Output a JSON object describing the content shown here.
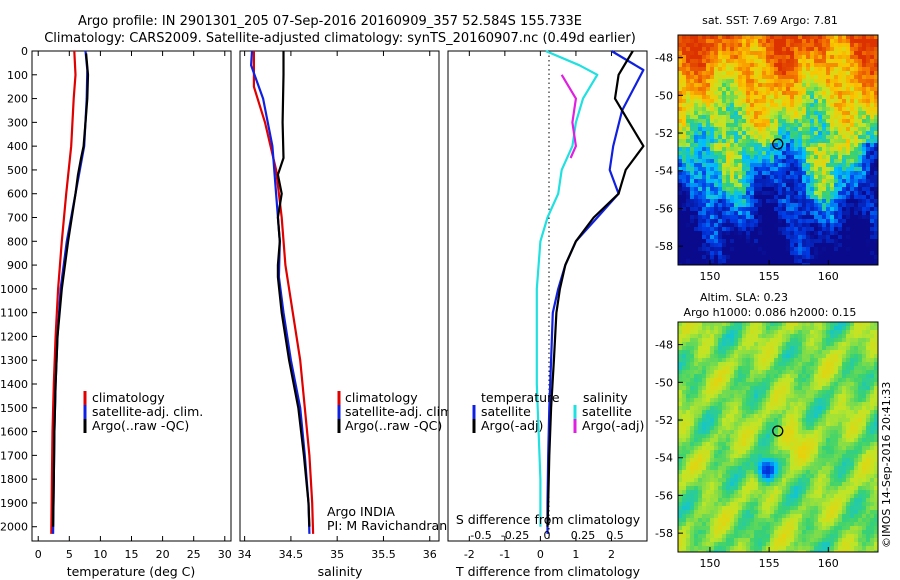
{
  "header": {
    "line1": "Argo profile: IN 2901301_205 07-Sep-2016 20160909_357 52.584S 155.733E",
    "line2": "Climatology: CARS2009. Satellite-adjusted climatology: synTS_20160907.nc (0.49d earlier)"
  },
  "colors": {
    "climatology": "#e00000",
    "satellite": "#1020e0",
    "argo": "#000000",
    "satellite_s": "#20e0e0",
    "argo_s": "#e020e0"
  },
  "depth_ticks": [
    "0",
    "100",
    "200",
    "300",
    "400",
    "500",
    "600",
    "700",
    "800",
    "900",
    "1000",
    "1100",
    "1200",
    "1300",
    "1400",
    "1500",
    "1600",
    "1700",
    "1800",
    "1900",
    "2000"
  ],
  "chart_data": [
    {
      "type": "line",
      "id": "temperature",
      "xlabel": "temperature (deg C)",
      "ylabel": "",
      "xlim": [
        -1,
        31
      ],
      "ylim": [
        2060,
        0
      ],
      "x_ticks": [
        "0",
        "5",
        "10",
        "15",
        "20",
        "25",
        "30"
      ],
      "legend": [
        "climatology",
        "satellite-adj. clim.",
        "Argo(..raw -QC)"
      ],
      "series": [
        {
          "name": "climatology",
          "color": "#e00000",
          "points": [
            [
              5.8,
              0
            ],
            [
              6.0,
              100
            ],
            [
              5.7,
              200
            ],
            [
              5.3,
              400
            ],
            [
              4.5,
              600
            ],
            [
              3.8,
              800
            ],
            [
              3.2,
              1000
            ],
            [
              2.8,
              1200
            ],
            [
              2.5,
              1400
            ],
            [
              2.3,
              1600
            ],
            [
              2.2,
              1800
            ],
            [
              2.1,
              2030
            ]
          ]
        },
        {
          "name": "satellite-adj. clim.",
          "color": "#1020e0",
          "points": [
            [
              7.6,
              0
            ],
            [
              7.9,
              80
            ],
            [
              7.8,
              200
            ],
            [
              7.4,
              400
            ],
            [
              6.0,
              600
            ],
            [
              4.6,
              800
            ],
            [
              3.6,
              1000
            ],
            [
              3.1,
              1200
            ],
            [
              2.8,
              1400
            ],
            [
              2.6,
              1600
            ],
            [
              2.5,
              1800
            ],
            [
              2.4,
              2030
            ]
          ]
        },
        {
          "name": "Argo(..raw -QC)",
          "color": "#000000",
          "points": [
            [
              7.7,
              10
            ],
            [
              8.0,
              100
            ],
            [
              7.9,
              200
            ],
            [
              7.6,
              300
            ],
            [
              7.3,
              400
            ],
            [
              6.9,
              450
            ],
            [
              6.4,
              520
            ],
            [
              6.0,
              600
            ],
            [
              4.8,
              800
            ],
            [
              3.8,
              1000
            ],
            [
              3.1,
              1200
            ],
            [
              2.8,
              1400
            ],
            [
              2.6,
              1600
            ],
            [
              2.5,
              1800
            ],
            [
              2.4,
              2000
            ]
          ]
        }
      ]
    },
    {
      "type": "line",
      "id": "salinity",
      "xlabel": "salinity",
      "ylabel": "",
      "xlim": [
        33.95,
        36.1
      ],
      "ylim": [
        2060,
        0
      ],
      "x_ticks": [
        "34",
        "34.5",
        "35",
        "35.5",
        "36"
      ],
      "legend": [
        "climatology",
        "satellite-adj. clim.",
        "Argo(..raw -QC)"
      ],
      "annotations": [
        "Argo INDIA",
        "PI: M Ravichandran"
      ],
      "series": [
        {
          "name": "climatology",
          "color": "#e00000",
          "points": [
            [
              34.1,
              0
            ],
            [
              34.1,
              150
            ],
            [
              34.22,
              300
            ],
            [
              34.34,
              500
            ],
            [
              34.4,
              700
            ],
            [
              34.44,
              900
            ],
            [
              34.52,
              1100
            ],
            [
              34.6,
              1300
            ],
            [
              34.65,
              1500
            ],
            [
              34.7,
              1700
            ],
            [
              34.73,
              1900
            ],
            [
              34.74,
              2030
            ]
          ]
        },
        {
          "name": "satellite-adj. clim.",
          "color": "#1020e0",
          "points": [
            [
              34.08,
              0
            ],
            [
              34.07,
              60
            ],
            [
              34.2,
              200
            ],
            [
              34.3,
              400
            ],
            [
              34.34,
              600
            ],
            [
              34.38,
              800
            ],
            [
              34.37,
              950
            ],
            [
              34.42,
              1100
            ],
            [
              34.5,
              1300
            ],
            [
              34.6,
              1500
            ],
            [
              34.65,
              1700
            ],
            [
              34.69,
              1900
            ],
            [
              34.7,
              2030
            ]
          ]
        },
        {
          "name": "Argo(..raw -QC)",
          "color": "#000000",
          "points": [
            [
              34.42,
              0
            ],
            [
              34.42,
              100
            ],
            [
              34.41,
              300
            ],
            [
              34.42,
              450
            ],
            [
              34.36,
              520
            ],
            [
              34.4,
              600
            ],
            [
              34.36,
              700
            ],
            [
              34.38,
              800
            ],
            [
              34.36,
              900
            ],
            [
              34.36,
              950
            ],
            [
              34.4,
              1100
            ],
            [
              34.48,
              1300
            ],
            [
              34.58,
              1500
            ],
            [
              34.64,
              1700
            ],
            [
              34.69,
              1900
            ],
            [
              34.7,
              2000
            ]
          ]
        }
      ]
    },
    {
      "type": "line",
      "id": "differences",
      "xlabel": "T difference from climatology",
      "xlabel_top": "S difference from climatology",
      "ylabel": "",
      "xlim": [
        -2.6,
        3.0
      ],
      "ylim": [
        2060,
        0
      ],
      "x_ticks": [
        "-2",
        "-1",
        "0",
        "1",
        "2"
      ],
      "x_ticks_s": [
        "-0.5",
        "-0.25",
        "0",
        "0.25",
        "0.5"
      ],
      "legend_groups": [
        {
          "title": "temperature",
          "items": [
            "satellite",
            "Argo(-adj)"
          ]
        },
        {
          "title": "salinity",
          "items": [
            "satellite",
            "Argo(-adj)"
          ]
        }
      ],
      "series": [
        {
          "name": "temperature satellite",
          "color": "#1020e0",
          "points": [
            [
              2.0,
              0
            ],
            [
              2.9,
              80
            ],
            [
              2.3,
              250
            ],
            [
              2.05,
              400
            ],
            [
              1.95,
              500
            ],
            [
              2.2,
              600
            ],
            [
              1.6,
              700
            ],
            [
              1.0,
              800
            ],
            [
              0.7,
              900
            ],
            [
              0.5,
              1000
            ],
            [
              0.35,
              1100
            ],
            [
              0.3,
              1300
            ],
            [
              0.25,
              1500
            ],
            [
              0.22,
              1700
            ],
            [
              0.2,
              1900
            ],
            [
              0.2,
              2030
            ]
          ]
        },
        {
          "name": "temperature Argo(-adj)",
          "color": "#000000",
          "points": [
            [
              2.6,
              0
            ],
            [
              2.2,
              100
            ],
            [
              2.1,
              200
            ],
            [
              2.5,
              300
            ],
            [
              2.9,
              400
            ],
            [
              2.4,
              500
            ],
            [
              2.3,
              550
            ],
            [
              2.2,
              600
            ],
            [
              1.5,
              700
            ],
            [
              1.0,
              800
            ],
            [
              0.7,
              900
            ],
            [
              0.55,
              1000
            ],
            [
              0.45,
              1100
            ],
            [
              0.38,
              1300
            ],
            [
              0.3,
              1500
            ],
            [
              0.25,
              1700
            ],
            [
              0.22,
              1900
            ],
            [
              0.2,
              2000
            ]
          ]
        },
        {
          "name": "salinity satellite",
          "color": "#20e0e0",
          "points": [
            [
              0.15,
              0
            ],
            [
              1.1,
              60
            ],
            [
              1.6,
              100
            ],
            [
              1.2,
              200
            ],
            [
              1.0,
              300
            ],
            [
              0.9,
              400
            ],
            [
              0.6,
              500
            ],
            [
              0.5,
              600
            ],
            [
              0.2,
              700
            ],
            [
              0.0,
              800
            ],
            [
              -0.05,
              900
            ],
            [
              -0.1,
              1000
            ],
            [
              -0.1,
              1200
            ],
            [
              -0.1,
              1400
            ],
            [
              -0.05,
              1600
            ],
            [
              0.0,
              1800
            ],
            [
              0.0,
              2000
            ]
          ]
        },
        {
          "name": "salinity Argo(-adj)",
          "color": "#e020e0",
          "points": [
            [
              0.6,
              100
            ],
            [
              1.0,
              200
            ],
            [
              0.9,
              300
            ],
            [
              1.0,
              400
            ],
            [
              0.85,
              450
            ]
          ]
        }
      ]
    },
    {
      "type": "heatmap",
      "id": "sst_map",
      "title": "sat. SST: 7.69  Argo: 7.81",
      "x_ticks": [
        "150",
        "155",
        "160"
      ],
      "y_ticks": [
        "-48",
        "-50",
        "-52",
        "-54",
        "-56",
        "-58"
      ],
      "xlim": [
        147.3,
        164.2
      ],
      "ylim": [
        -59,
        -46.8
      ],
      "marker": [
        155.73,
        -52.58
      ]
    },
    {
      "type": "heatmap",
      "id": "sla_map",
      "title": "Altim. SLA: 0.23",
      "subtitle": "Argo h1000: 0.086 h2000: 0.15",
      "x_ticks": [
        "150",
        "155",
        "160"
      ],
      "y_ticks": [
        "-48",
        "-50",
        "-52",
        "-54",
        "-56",
        "-58"
      ],
      "xlim": [
        147.3,
        164.2
      ],
      "ylim": [
        -59,
        -46.8
      ],
      "marker": [
        155.73,
        -52.58
      ]
    }
  ],
  "credit": "©IMOS 14-Sep-2016 20:41:33"
}
